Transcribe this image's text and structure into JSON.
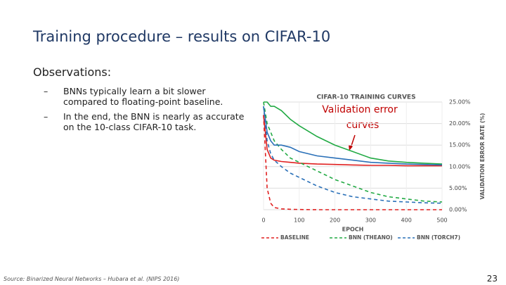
{
  "title": "Training procedure – results on CIFAR-10",
  "observations": {
    "heading": "Observations:",
    "bullets": [
      "BNNs typically learn a bit slower compared to floating-point baseline.",
      "In the end, the BNN is nearly as accurate on the 10-class CIFAR-10 task."
    ]
  },
  "source": "Source: Binarized Neural Networks – Hubara et al. (NIPS 2016)",
  "page_number": "23",
  "chart_data": {
    "type": "line",
    "title": "CIFAR-10 TRAINING CURVES",
    "x_label": "EPOCH",
    "y_label": "VALIDATION ERROR RATE (%)",
    "annotation": [
      "Validation error",
      "curves"
    ],
    "x": [
      0,
      10,
      20,
      30,
      50,
      75,
      100,
      150,
      200,
      250,
      300,
      350,
      400,
      450,
      500
    ],
    "xlim": [
      0,
      500
    ],
    "xticks": [
      0,
      100,
      200,
      300,
      400,
      500
    ],
    "ylim": [
      0,
      25
    ],
    "yticks": [
      {
        "value": 0,
        "label": "0.00%"
      },
      {
        "value": 5,
        "label": "5.00%"
      },
      {
        "value": 10,
        "label": "10.00%"
      },
      {
        "value": 15,
        "label": "15.00%"
      },
      {
        "value": 20,
        "label": "20.00%"
      },
      {
        "value": 25,
        "label": "25.00%"
      }
    ],
    "grid": true,
    "series": [
      {
        "name": "BASELINE",
        "color": "#e02020",
        "values": [
          22,
          14,
          12,
          11.5,
          11.2,
          11,
          10.8,
          10.6,
          10.5,
          10.4,
          10.3,
          10.3,
          10.2,
          10.2,
          10.2
        ],
        "training": [
          22,
          5,
          1.5,
          0.5,
          0.2,
          0.1,
          0.05,
          0,
          0,
          0,
          0,
          0,
          0,
          0,
          0
        ]
      },
      {
        "name": "BNN (THEANO)",
        "color": "#22aa44",
        "values": [
          25,
          25,
          24,
          24,
          23,
          21,
          19.5,
          17,
          15,
          13.5,
          12,
          11.3,
          11,
          10.8,
          10.6
        ],
        "training": [
          25,
          20,
          18,
          16,
          14,
          12,
          11,
          9,
          7,
          5.5,
          4,
          3,
          2.5,
          2,
          1.8
        ]
      },
      {
        "name": "BNN (TORCH7)",
        "color": "#2a70b8",
        "values": [
          24,
          18,
          16,
          15,
          15,
          14.5,
          13.5,
          12.5,
          12,
          11.5,
          11,
          10.8,
          10.6,
          10.5,
          10.4
        ],
        "training": [
          24,
          16,
          13,
          11.5,
          10,
          8.5,
          7.5,
          5.5,
          4,
          3,
          2.5,
          2,
          1.8,
          1.6,
          1.5
        ]
      }
    ]
  }
}
